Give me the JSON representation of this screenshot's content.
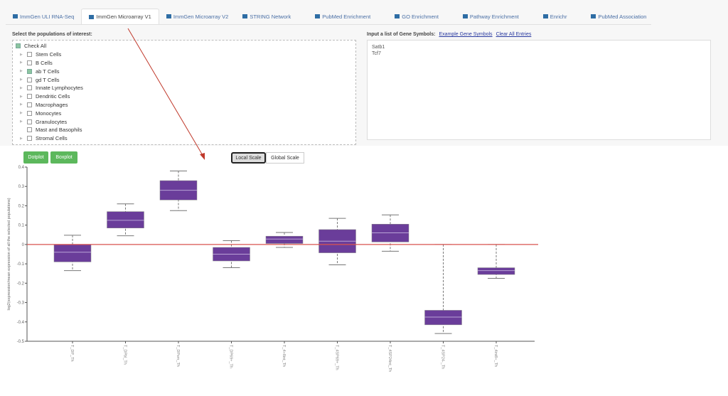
{
  "tabs": [
    {
      "label": "ImmGen ULI RNA-Seq",
      "icon": "database-icon"
    },
    {
      "label": "ImmGen Microarray V1",
      "icon": "grid-icon",
      "active": true
    },
    {
      "label": "ImmGen Microarray V2",
      "icon": "grid-icon"
    },
    {
      "label": "STRING Network",
      "icon": "network-icon"
    },
    {
      "label": "PubMed Enrichment",
      "icon": "book-icon"
    },
    {
      "label": "GO Enrichment",
      "icon": "book-icon"
    },
    {
      "label": "Pathway Enrichment",
      "icon": "book-icon"
    },
    {
      "label": "Enrichr",
      "icon": "calculator-icon"
    },
    {
      "label": "PubMed Association",
      "icon": "book-icon"
    }
  ],
  "populations": {
    "title": "Select the populations of interest:",
    "check_all": "Check All",
    "items": [
      {
        "label": "Stem Cells",
        "checked": false
      },
      {
        "label": "B Cells",
        "checked": false
      },
      {
        "label": "ab T Cells",
        "checked": true
      },
      {
        "label": "gd T Cells",
        "checked": false
      },
      {
        "label": "Innate Lymphocytes",
        "checked": false
      },
      {
        "label": "Dendritic Cells",
        "checked": false
      },
      {
        "label": "Macrophages",
        "checked": false
      },
      {
        "label": "Monocytes",
        "checked": false
      },
      {
        "label": "Granulocytes",
        "checked": false
      },
      {
        "label": "Mast and Basophils",
        "checked": false
      },
      {
        "label": "Stromal Cells",
        "checked": false
      }
    ]
  },
  "genes": {
    "title": "Input a list of Gene Symbols:",
    "example_link": "Example Gene Symbols",
    "clear_link": "Clear All Entries",
    "value": "Satb1\nTcf7"
  },
  "buttons": {
    "dotplot": "Dotplot",
    "boxplot": "Boxplot",
    "local_scale": "Local Scale",
    "global_scale": "Global Scale"
  },
  "colors": {
    "box": "#6a3d9a",
    "zero_line": "#d9534f",
    "button": "#5cb85c"
  },
  "chart_data": {
    "type": "box",
    "ylabel": "log2(expression/mean expression of all the selected populations)",
    "ylim": [
      -0.5,
      0.4
    ],
    "yticks": [
      0.4,
      0.3,
      0.2,
      0.1,
      0,
      -0.1,
      -0.2,
      -0.3,
      -0.4,
      -0.5
    ],
    "reference_line": 0,
    "categories": [
      "T_DP_Th",
      "T_DPbl_Th",
      "T_DPsm_Th",
      "T_DP69+_Th",
      "T_4+8int_Th",
      "T_4SP69+_Th",
      "T_4SP24int_Th",
      "T_4SP24-_Th",
      "T_4int8+_Th"
    ],
    "boxes": [
      {
        "min": -0.135,
        "q1": -0.09,
        "median": -0.04,
        "q3": 0.0,
        "max": 0.048
      },
      {
        "min": 0.045,
        "q1": 0.085,
        "median": 0.125,
        "q3": 0.17,
        "max": 0.21
      },
      {
        "min": 0.175,
        "q1": 0.23,
        "median": 0.28,
        "q3": 0.33,
        "max": 0.38
      },
      {
        "min": -0.12,
        "q1": -0.085,
        "median": -0.05,
        "q3": -0.015,
        "max": 0.02
      },
      {
        "min": -0.015,
        "q1": 0.005,
        "median": 0.028,
        "q3": 0.043,
        "max": 0.062
      },
      {
        "min": -0.105,
        "q1": -0.043,
        "median": 0.017,
        "q3": 0.077,
        "max": 0.135
      },
      {
        "min": -0.035,
        "q1": 0.013,
        "median": 0.06,
        "q3": 0.105,
        "max": 0.153
      },
      {
        "min": -0.46,
        "q1": -0.415,
        "median": -0.375,
        "q3": -0.34,
        "max": 0.0
      },
      {
        "min": -0.175,
        "q1": -0.155,
        "median": -0.135,
        "q3": -0.12,
        "max": 0.0
      }
    ]
  }
}
